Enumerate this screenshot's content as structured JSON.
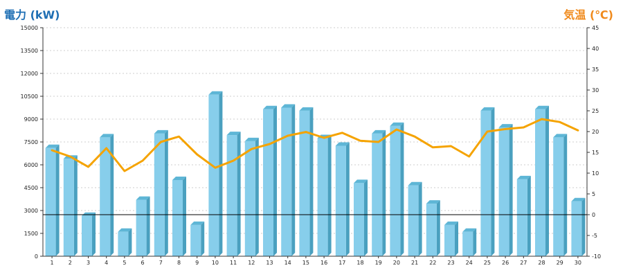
{
  "chart_data": {
    "type": "bar",
    "left_axis": {
      "title": "電力 (kW)",
      "min": 0,
      "max": 15000,
      "ticks": [
        "0",
        "1500",
        "3000",
        "4500",
        "6000",
        "7500",
        "9000",
        "10500",
        "12000",
        "13500",
        "15000"
      ]
    },
    "right_axis": {
      "title": "気温 (℃)",
      "min": -10,
      "max": 45,
      "ticks": [
        "-10",
        "-5",
        "0",
        "5",
        "10",
        "15",
        "20",
        "25",
        "30",
        "35",
        "40",
        "45"
      ]
    },
    "categories": [
      "1",
      "2",
      "3",
      "4",
      "5",
      "6",
      "7",
      "8",
      "9",
      "10",
      "11",
      "12",
      "13",
      "14",
      "15",
      "16",
      "17",
      "18",
      "19",
      "20",
      "21",
      "22",
      "23",
      "24",
      "25",
      "26",
      "27",
      "28",
      "29",
      "30"
    ],
    "series": [
      {
        "axis": "left",
        "type": "bar",
        "color": "#87ceeb",
        "values": [
          7100,
          6400,
          2650,
          7800,
          1600,
          3700,
          8050,
          5000,
          2050,
          10600,
          7950,
          7550,
          9650,
          9750,
          9550,
          7750,
          7250,
          4800,
          8050,
          8550,
          4650,
          3450,
          2050,
          1600,
          9550,
          8450,
          5050,
          9650,
          7800,
          3600
        ]
      },
      {
        "axis": "right",
        "type": "line",
        "color": "#f5a300",
        "values": [
          15.5,
          14.0,
          11.5,
          16.0,
          10.5,
          13.0,
          17.5,
          18.8,
          14.5,
          11.3,
          13.0,
          15.8,
          17.0,
          19.0,
          19.9,
          18.5,
          19.7,
          17.8,
          17.5,
          20.5,
          18.8,
          16.2,
          16.5,
          14.0,
          20.0,
          20.6,
          21.0,
          23.0,
          22.3,
          20.3
        ]
      }
    ],
    "reference_line": {
      "value": 0,
      "axis": "right",
      "color": "#000000"
    },
    "grid": true,
    "colors": {
      "bar_front": "#87ceeb",
      "bar_side": "#4aa0bf",
      "bar_top": "#5eb6d6",
      "line": "#f5a300",
      "left_title": "#1f6fb4",
      "right_title": "#f08a1c"
    }
  }
}
